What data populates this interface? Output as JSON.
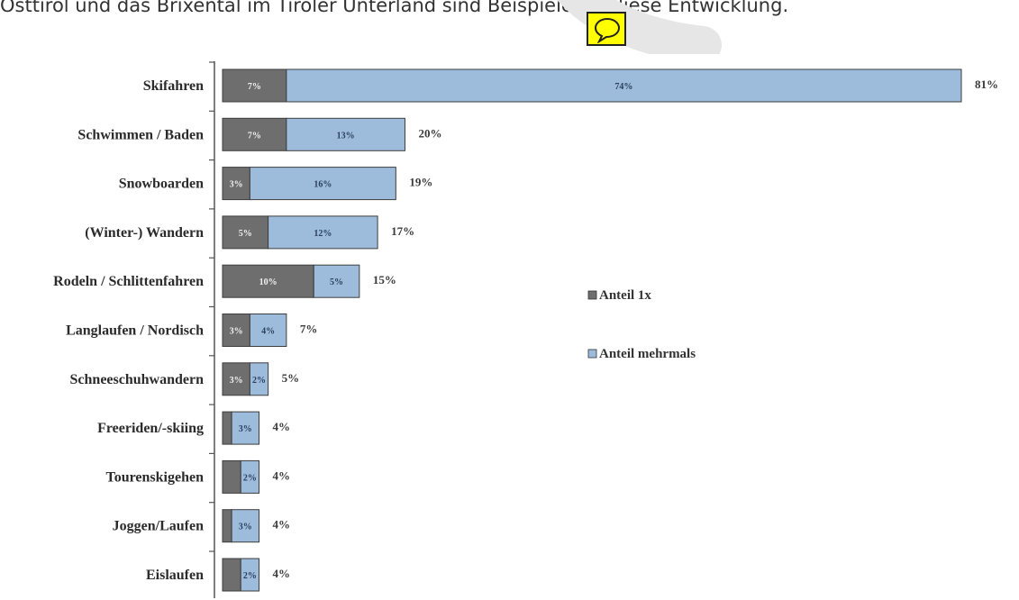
{
  "top_text": "Osttirol und das Brixental im Tiroler Unterland sind Beispiele für diese Entwicklung.",
  "colors": {
    "once": "#6e6e6e",
    "multiple": "#9dbcdc",
    "comment_bg": "#ffff00",
    "watermark": "#e6e6e6"
  },
  "icons": {
    "comment": "speech-bubble-icon"
  },
  "chart_data": {
    "type": "bar",
    "orientation": "horizontal",
    "stacked": true,
    "categories": [
      "Skifahren",
      "Schwimmen / Baden",
      "Snowboarden",
      "(Winter-) Wandern",
      "Rodeln / Schlittenfahren",
      "Langlaufen / Nordisch",
      "Schneeschuhwandern",
      "Freeriden/-skiing",
      "Tourenskigehen",
      "Joggen/Laufen",
      "Eislaufen"
    ],
    "series": [
      {
        "name": "Anteil 1x",
        "values": [
          7,
          7,
          3,
          5,
          10,
          3,
          3,
          1,
          2,
          1,
          2
        ],
        "labels": [
          "7%",
          "7%",
          "3%",
          "5%",
          "10%",
          "3%",
          "3%",
          "",
          "",
          "",
          ""
        ]
      },
      {
        "name": "Anteil mehrmals",
        "values": [
          74,
          13,
          16,
          12,
          5,
          4,
          2,
          3,
          2,
          3,
          2
        ],
        "labels": [
          "74%",
          "13%",
          "16%",
          "12%",
          "5%",
          "4%",
          "2%",
          "3%",
          "2%",
          "3%",
          "2%"
        ]
      }
    ],
    "totals": [
      "81%",
      "20%",
      "19%",
      "17%",
      "15%",
      "7%",
      "5%",
      "4%",
      "4%",
      "4%",
      "4%"
    ],
    "xlim": [
      0,
      81
    ],
    "grid": false,
    "legend": "right"
  }
}
